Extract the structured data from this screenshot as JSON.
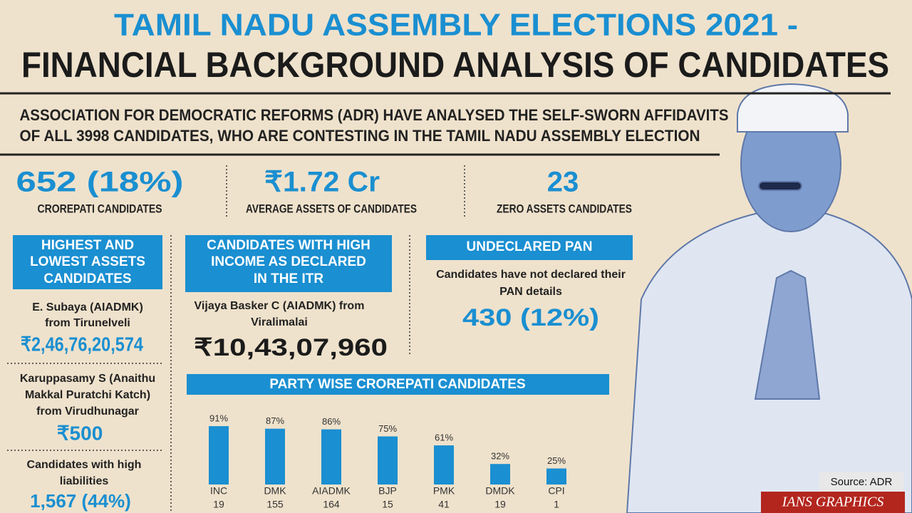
{
  "header": {
    "title_line1": "TAMIL NADU ASSEMBLY ELECTIONS 2021 -",
    "title_line2": "FINANCIAL BACKGROUND ANALYSIS OF CANDIDATES"
  },
  "intro": {
    "line1": "ASSOCIATION FOR DEMOCRATIC REFORMS (ADR) HAVE ANALYSED THE SELF-SWORN AFFIDAVITS",
    "line2": "OF ALL 3998 CANDIDATES, WHO ARE CONTESTING IN THE TAMIL NADU ASSEMBLY ELECTION"
  },
  "stats": [
    {
      "value": "652 (18%)",
      "label": "CROREPATI CANDIDATES"
    },
    {
      "value": "₹1.72 Cr",
      "label": "AVERAGE ASSETS OF CANDIDATES"
    },
    {
      "value": "23",
      "label": "ZERO ASSETS CANDIDATES"
    }
  ],
  "assets_panel": {
    "heading": [
      "HIGHEST AND",
      "LOWEST ASSETS",
      "CANDIDATES"
    ],
    "highest": {
      "lines": [
        "E. Subaya (AIADMK)",
        "from Tirunelveli"
      ],
      "amount": "₹2,46,76,20,574"
    },
    "lowest": {
      "lines": [
        "Karuppasamy S (Anaithu",
        "Makkal Puratchi Katch)",
        "from Virudhunagar"
      ],
      "amount": "₹500"
    },
    "liabilities": {
      "lines": [
        "Candidates with high",
        "liabilities"
      ],
      "amount": "1,567 (44%)"
    }
  },
  "income_panel": {
    "heading": [
      "CANDIDATES WITH HIGH",
      "INCOME AS DECLARED",
      "IN THE ITR"
    ],
    "lines": [
      "Vijaya Basker C (AIADMK) from",
      "Viralimalai"
    ],
    "amount": "₹10,43,07,960"
  },
  "pan_panel": {
    "heading": "UNDECLARED PAN",
    "lines": [
      "Candidates have not declared their",
      "PAN details"
    ],
    "amount": "430 (12%)"
  },
  "chart_data": {
    "type": "bar",
    "title": "PARTY WISE CROREPATI CANDIDATES",
    "categories": [
      "INC",
      "DMK",
      "AIADMK",
      "BJP",
      "PMK",
      "DMDK",
      "CPI"
    ],
    "values": [
      91,
      87,
      86,
      75,
      61,
      32,
      25
    ],
    "value_labels": [
      "91%",
      "87%",
      "86%",
      "75%",
      "61%",
      "32%",
      "25%"
    ],
    "candidates": [
      19,
      155,
      164,
      15,
      41,
      19,
      1
    ],
    "color": "#1a8fd1"
  },
  "footer": {
    "source": "Source: ADR",
    "credit": "IANS GRAPHICS"
  }
}
